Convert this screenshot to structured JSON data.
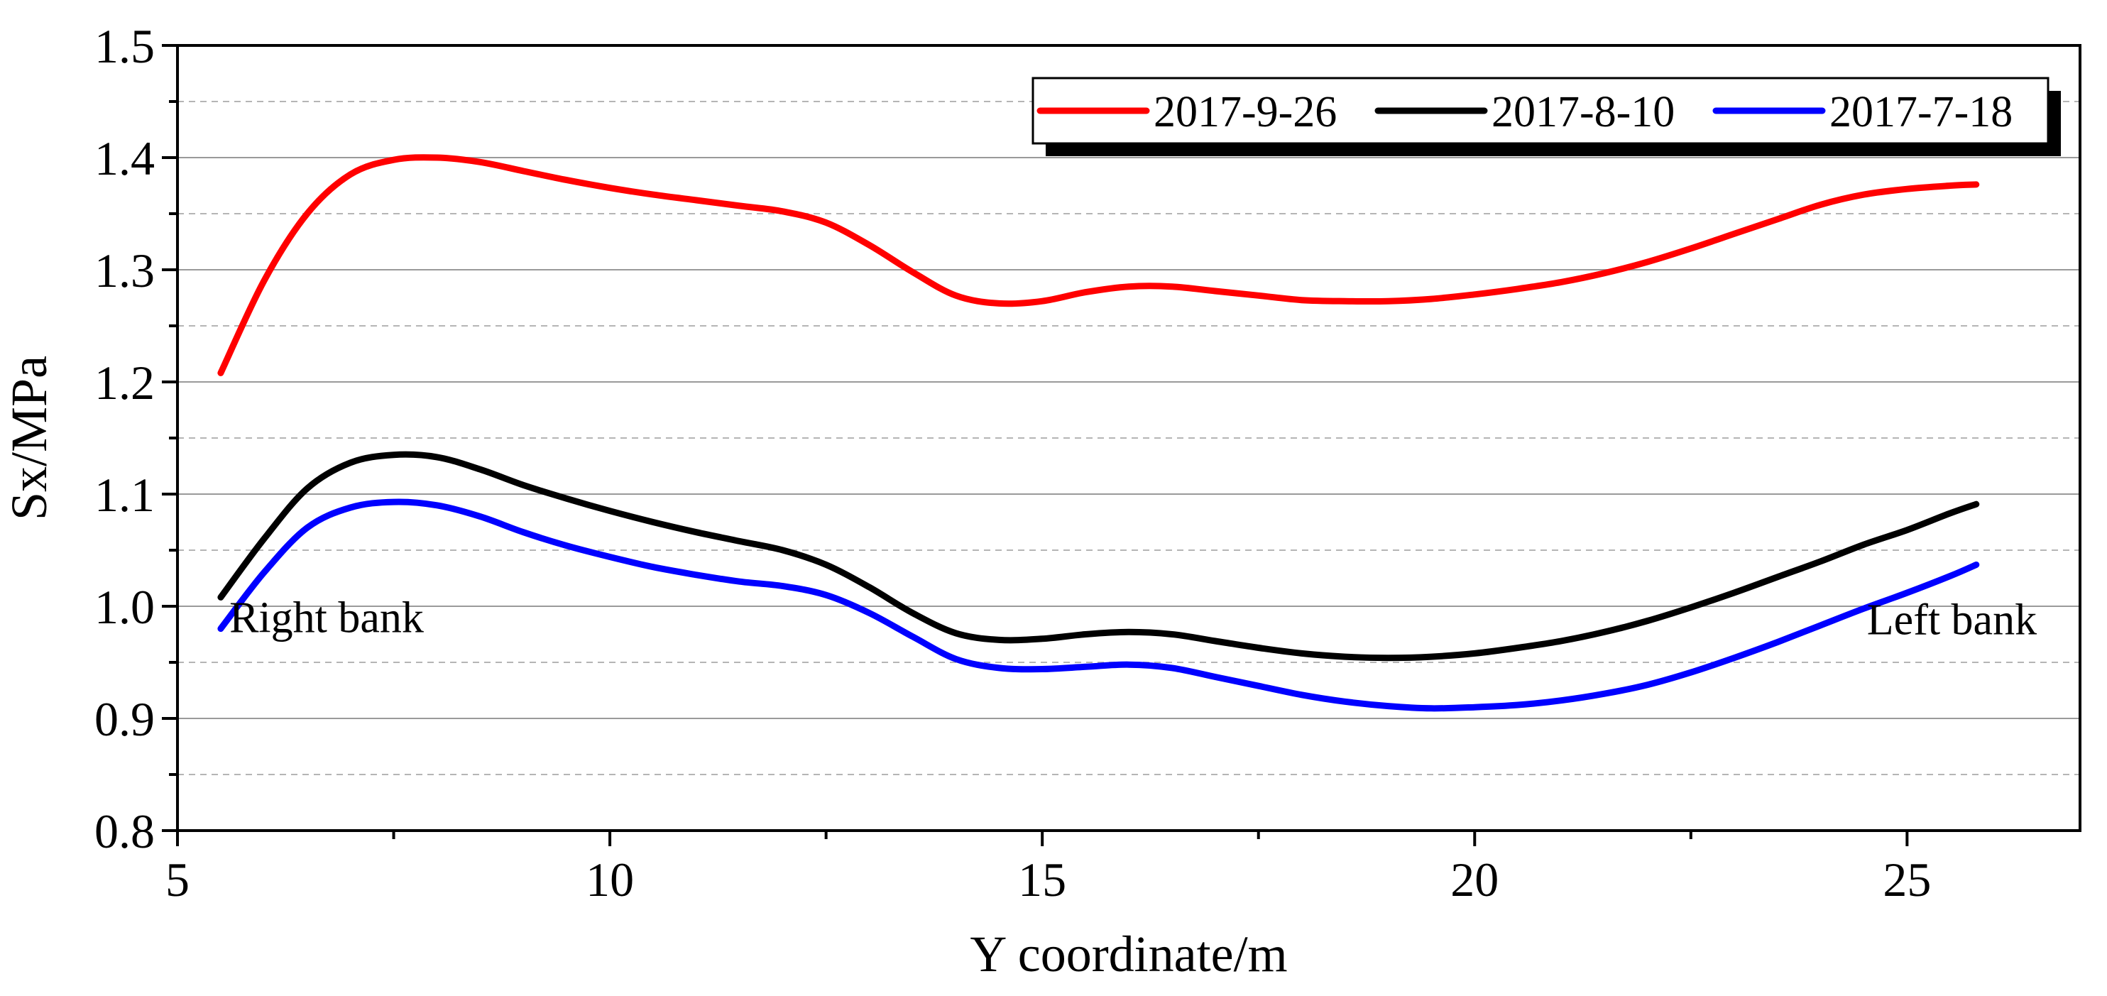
{
  "chart_data": {
    "type": "line",
    "title": "",
    "xlabel": "Y coordinate/m",
    "ylabel": "Sx/MPa",
    "xlim": [
      5,
      27
    ],
    "ylim": [
      0.8,
      1.5
    ],
    "xticks": [
      5,
      10,
      15,
      20,
      25
    ],
    "xtick_labels": [
      "5",
      "10",
      "15",
      "20",
      "25"
    ],
    "yticks": [
      0.8,
      0.9,
      1.0,
      1.1,
      1.2,
      1.3,
      1.4,
      1.5
    ],
    "ytick_labels": [
      "0.8",
      "0.9",
      "1.0",
      "1.1",
      "1.2",
      "1.3",
      "1.4",
      "1.5"
    ],
    "grid": "horizontal (solid at major ticks, dashed at minor ticks)",
    "legend_position": "top-right",
    "series": [
      {
        "name": "2017-9-26",
        "color": "#ff0000",
        "x": [
          5.5,
          6,
          6.5,
          7,
          7.5,
          8,
          8.5,
          9,
          9.5,
          10,
          10.5,
          11,
          11.5,
          12,
          12.5,
          13,
          13.5,
          14,
          14.5,
          15,
          15.5,
          16,
          16.5,
          17,
          17.5,
          18,
          18.5,
          19,
          19.5,
          20,
          20.5,
          21,
          21.5,
          22,
          22.5,
          23,
          23.5,
          24,
          24.5,
          25,
          25.5,
          25.8
        ],
        "y": [
          1.208,
          1.29,
          1.35,
          1.385,
          1.398,
          1.4,
          1.396,
          1.388,
          1.38,
          1.373,
          1.367,
          1.362,
          1.357,
          1.352,
          1.342,
          1.322,
          1.298,
          1.277,
          1.27,
          1.272,
          1.28,
          1.285,
          1.285,
          1.281,
          1.277,
          1.273,
          1.272,
          1.272,
          1.274,
          1.278,
          1.283,
          1.289,
          1.297,
          1.307,
          1.319,
          1.332,
          1.345,
          1.358,
          1.367,
          1.372,
          1.375,
          1.376
        ]
      },
      {
        "name": "2017-8-10",
        "color": "#000000",
        "x": [
          5.5,
          6,
          6.5,
          7,
          7.5,
          8,
          8.5,
          9,
          9.5,
          10,
          10.5,
          11,
          11.5,
          12,
          12.5,
          13,
          13.5,
          14,
          14.5,
          15,
          15.5,
          16,
          16.5,
          17,
          17.5,
          18,
          18.5,
          19,
          19.5,
          20,
          20.5,
          21,
          21.5,
          22,
          22.5,
          23,
          23.5,
          24,
          24.5,
          25,
          25.5,
          25.8
        ],
        "y": [
          1.008,
          1.06,
          1.105,
          1.128,
          1.135,
          1.133,
          1.122,
          1.108,
          1.096,
          1.085,
          1.075,
          1.066,
          1.058,
          1.05,
          1.037,
          1.017,
          0.994,
          0.976,
          0.97,
          0.971,
          0.975,
          0.977,
          0.975,
          0.969,
          0.963,
          0.958,
          0.955,
          0.954,
          0.955,
          0.958,
          0.963,
          0.969,
          0.977,
          0.987,
          0.999,
          1.012,
          1.026,
          1.04,
          1.055,
          1.068,
          1.083,
          1.091
        ]
      },
      {
        "name": "2017-7-18",
        "color": "#0000ff",
        "x": [
          5.5,
          6,
          6.5,
          7,
          7.5,
          8,
          8.5,
          9,
          9.5,
          10,
          10.5,
          11,
          11.5,
          12,
          12.5,
          13,
          13.5,
          14,
          14.5,
          15,
          15.5,
          16,
          16.5,
          17,
          17.5,
          18,
          18.5,
          19,
          19.5,
          20,
          20.5,
          21,
          21.5,
          22,
          22.5,
          23,
          23.5,
          24,
          24.5,
          25,
          25.5,
          25.8
        ],
        "y": [
          0.98,
          1.03,
          1.07,
          1.088,
          1.093,
          1.09,
          1.08,
          1.066,
          1.054,
          1.044,
          1.035,
          1.028,
          1.022,
          1.018,
          1.01,
          0.994,
          0.973,
          0.953,
          0.945,
          0.944,
          0.946,
          0.948,
          0.945,
          0.937,
          0.929,
          0.921,
          0.915,
          0.911,
          0.909,
          0.91,
          0.912,
          0.916,
          0.922,
          0.93,
          0.941,
          0.954,
          0.968,
          0.983,
          0.998,
          1.012,
          1.027,
          1.037
        ]
      }
    ],
    "annotations": [
      {
        "text": "Right bank",
        "x": 5.6,
        "y": 0.977,
        "align": "start"
      },
      {
        "text": "Left bank",
        "x": 26.5,
        "y": 0.975,
        "align": "end"
      }
    ]
  }
}
